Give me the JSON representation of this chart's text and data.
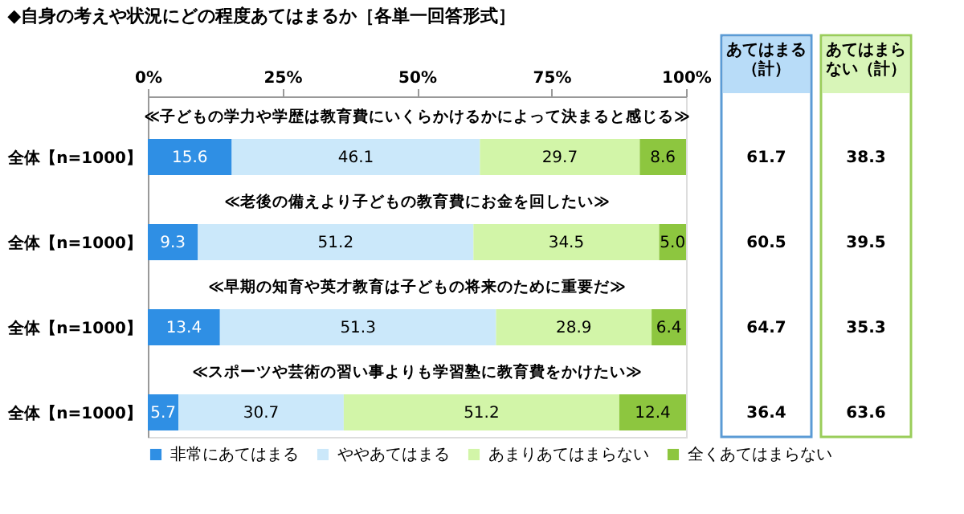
{
  "chart_data": {
    "type": "bar",
    "orientation": "horizontal",
    "stacked": true,
    "title": "◆自身の考えや状況にどの程度あてはまるか［各単一回答形式］",
    "ylabel": "全体【n=1000】",
    "categories": [
      "≪子どもの学力や学歴は教育費にいくらかけるかによって決まると感じる≫",
      "≪老後の備えより子どもの教育費にお金を回したい≫",
      "≪早期の知育や英才教育は子どもの将来のために重要だ≫",
      "≪スポーツや芸術の習い事よりも学習塾に教育費をかけたい≫"
    ],
    "series": [
      {
        "name": "非常にあてはまる",
        "color": "#2f8fe4",
        "values": [
          15.6,
          9.3,
          13.4,
          5.7
        ],
        "value_labels": [
          "15.6",
          "9.3",
          "13.4",
          "5.7"
        ]
      },
      {
        "name": "ややあてはまる",
        "color": "#cbe8fa",
        "values": [
          46.1,
          51.2,
          51.3,
          30.7
        ],
        "value_labels": [
          "46.1",
          "51.2",
          "51.3",
          "30.7"
        ]
      },
      {
        "name": "あまりあてはまらない",
        "color": "#d2f5a8",
        "values": [
          29.7,
          34.5,
          28.9,
          51.2
        ],
        "value_labels": [
          "29.7",
          "34.5",
          "28.9",
          "51.2"
        ]
      },
      {
        "name": "全くあてはまらない",
        "color": "#8dc63f",
        "values": [
          8.6,
          5.0,
          6.4,
          12.4
        ],
        "value_labels": [
          "8.6",
          "5.0",
          "6.4",
          "12.4"
        ]
      }
    ],
    "xlim": [
      0,
      100
    ],
    "xticks": [
      {
        "value": 0,
        "label": "0%"
      },
      {
        "value": 25,
        "label": "25%"
      },
      {
        "value": 50,
        "label": "50%"
      },
      {
        "value": 75,
        "label": "75%"
      },
      {
        "value": 100,
        "label": "100%"
      }
    ],
    "legend": "bottom",
    "grid": false,
    "annotations": [
      "あてはまる（計）",
      "あてはまらない（計）",
      "61.7",
      "38.3",
      "60.5",
      "39.5",
      "64.7",
      "35.3",
      "36.4",
      "63.6"
    ]
  }
}
